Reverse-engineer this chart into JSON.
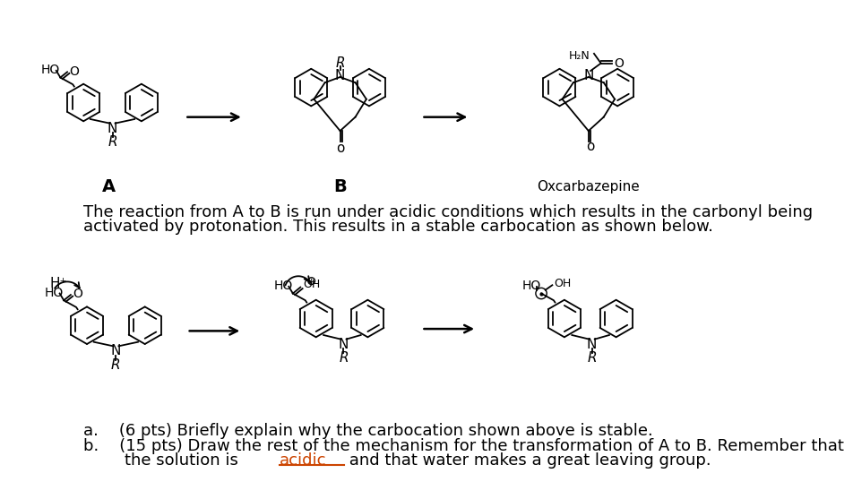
{
  "bg_color": "#ffffff",
  "description_line1": "The reaction from A to B is run under acidic conditions which results in the carbonyl being",
  "description_line2": "activated by protonation. This results in a stable carbocation as shown below.",
  "label_A": "A",
  "label_B": "B",
  "label_oxcarb": "Oxcarbazepine",
  "bullet_a": "a.    (6 pts) Briefly explain why the carbocation shown above is stable.",
  "bullet_b1": "b.    (15 pts) Draw the rest of the mechanism for the transformation of A to B. Remember that",
  "bullet_b2_pre": "        the solution is ",
  "bullet_b2_acidic": "acidic",
  "bullet_b2_post": " and that water makes a great leaving group.",
  "acidic_word": "acidic",
  "font_size_body": 13,
  "font_size_label": 14,
  "text_color": "#000000",
  "underline_color": "#cc4400"
}
